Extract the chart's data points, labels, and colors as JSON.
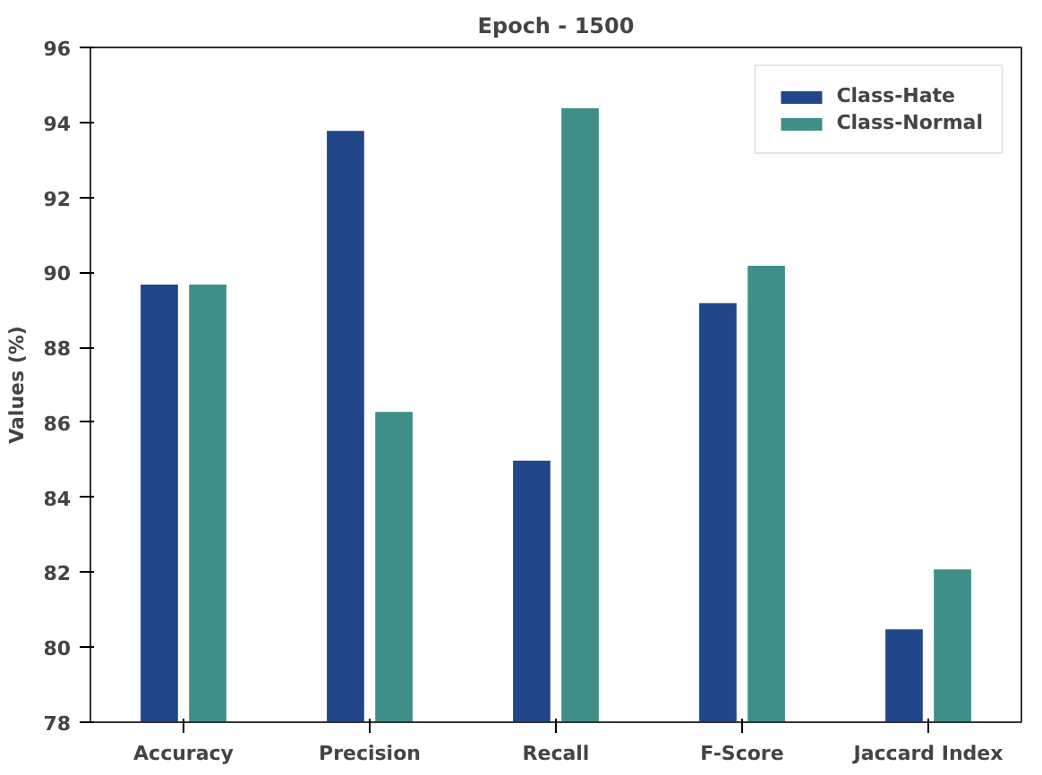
{
  "chart_data": {
    "type": "bar",
    "title": "Epoch - 1500",
    "ylabel": "Values (%)",
    "categories": [
      "Accuracy",
      "Precision",
      "Recall",
      "F-Score",
      "Jaccard Index"
    ],
    "series": [
      {
        "name": "Class-Hate",
        "color": "#22468a",
        "values": [
          89.7,
          93.8,
          85.0,
          89.2,
          80.5
        ]
      },
      {
        "name": "Class-Normal",
        "color": "#3f8f88",
        "values": [
          89.7,
          86.3,
          94.4,
          90.2,
          82.1
        ]
      }
    ],
    "ylim": [
      78,
      96
    ],
    "yticks": [
      78,
      80,
      82,
      84,
      86,
      88,
      90,
      92,
      94,
      96
    ],
    "grid": false,
    "legend": "top right"
  }
}
